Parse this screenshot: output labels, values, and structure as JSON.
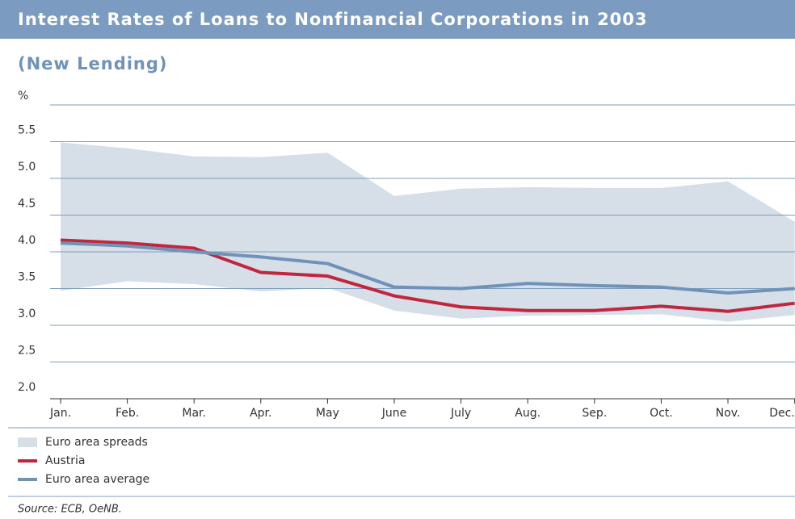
{
  "chart_data": {
    "type": "line",
    "title": "Interest Rates of Loans to Nonfinancial Corporations in 2003",
    "subtitle": "(New Lending)",
    "y_axis_label": "%",
    "source": "Source: ECB, OeNB.",
    "categories": [
      "Jan.",
      "Feb.",
      "Mar.",
      "Apr.",
      "May",
      "June",
      "July",
      "Aug.",
      "Sep.",
      "Oct.",
      "Nov.",
      "Dec."
    ],
    "ylim": [
      2.0,
      6.0
    ],
    "yticks": [
      {
        "value": 2.0,
        "label": "2.0"
      },
      2.5,
      {
        "value": 3.0,
        "label": "3.0"
      },
      3.5,
      {
        "value": 4.0,
        "label": "4.0"
      },
      4.5,
      {
        "value": 5.0,
        "label": "5.0"
      },
      5.5
    ],
    "grid": true,
    "series": [
      {
        "name": "Euro area spreads",
        "color": "#d6dee8",
        "type": "band",
        "high": [
          5.49,
          5.41,
          5.3,
          5.29,
          5.35,
          4.76,
          4.86,
          4.88,
          4.87,
          4.87,
          4.96,
          4.41
        ],
        "low": [
          3.47,
          3.6,
          3.56,
          3.46,
          3.51,
          3.2,
          3.09,
          3.13,
          3.14,
          3.15,
          3.05,
          3.14
        ]
      },
      {
        "name": "Austria",
        "color": "#c0273f",
        "values": [
          4.16,
          4.12,
          4.05,
          3.72,
          3.67,
          3.4,
          3.25,
          3.2,
          3.2,
          3.26,
          3.19,
          3.3
        ]
      },
      {
        "name": "Euro area average",
        "color": "#6f93b8",
        "values": [
          4.12,
          4.08,
          4.0,
          3.93,
          3.84,
          3.52,
          3.5,
          3.57,
          3.54,
          3.52,
          3.44,
          3.5
        ]
      }
    ]
  }
}
